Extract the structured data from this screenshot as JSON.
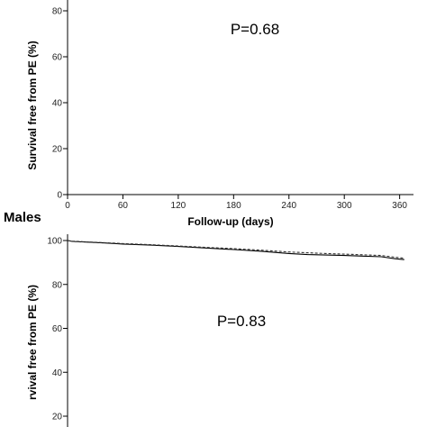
{
  "chart_data": [
    {
      "type": "line",
      "title": "",
      "xlabel": "Follow-up  (days)",
      "ylabel": "Survival free from  PE (%)",
      "annotation": "P=0.68",
      "xlim": [
        0,
        375
      ],
      "ylim": [
        0,
        100
      ],
      "xticks": [
        0,
        60,
        120,
        180,
        240,
        300,
        360
      ],
      "yticks": [
        0,
        20,
        40,
        60,
        80
      ],
      "grid": false,
      "series": []
    },
    {
      "type": "line",
      "title": "Males",
      "xlabel": "",
      "ylabel": "rvival free from  PE (%)",
      "annotation": "P=0.83",
      "xlim": [
        0,
        375
      ],
      "ylim": [
        0,
        100
      ],
      "yticks": [
        20,
        40,
        60,
        80,
        100
      ],
      "grid": false,
      "series": [
        {
          "style": "solid",
          "x": [
            0,
            5,
            20,
            40,
            60,
            90,
            120,
            150,
            180,
            210,
            240,
            260,
            280,
            300,
            320,
            340,
            355,
            365
          ],
          "y": [
            100,
            99.6,
            99.3,
            98.9,
            98.4,
            97.9,
            97.3,
            96.6,
            95.9,
            95.1,
            94.1,
            93.6,
            93.4,
            93.2,
            92.9,
            92.6,
            91.7,
            91.3
          ]
        },
        {
          "style": "dashed",
          "x": [
            0,
            5,
            20,
            40,
            60,
            90,
            120,
            150,
            180,
            210,
            240,
            260,
            280,
            300,
            320,
            340,
            355,
            365
          ],
          "y": [
            100,
            99.7,
            99.4,
            99.0,
            98.6,
            98.1,
            97.5,
            96.9,
            96.3,
            95.6,
            94.8,
            94.4,
            94.1,
            93.8,
            93.5,
            93.2,
            92.4,
            91.9
          ]
        }
      ]
    }
  ]
}
